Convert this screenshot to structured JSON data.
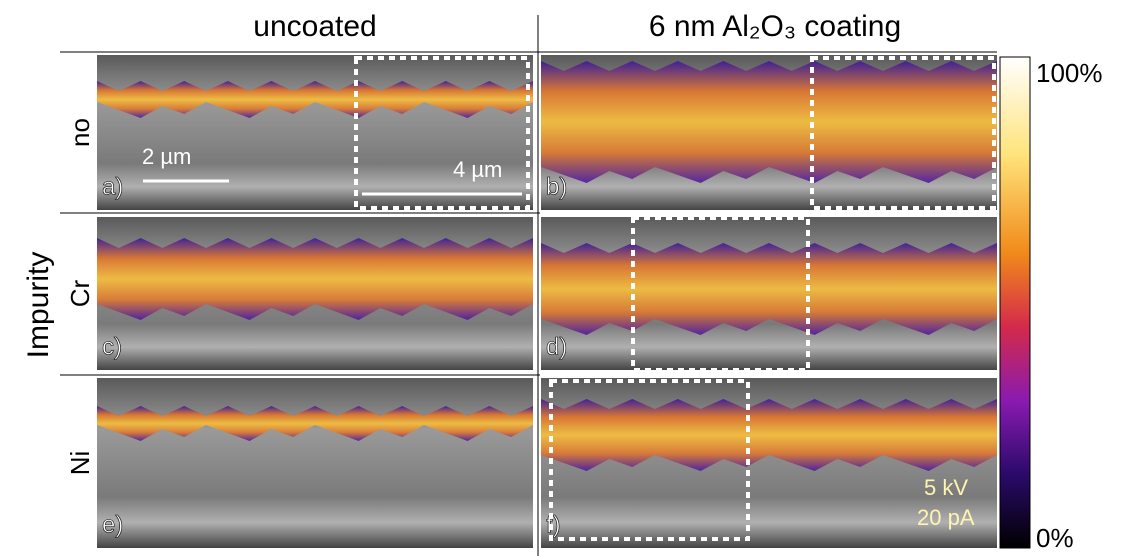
{
  "header": {
    "columns": [
      "uncoated",
      "6 nm Al₂O₃ coating"
    ]
  },
  "rows": {
    "title": "Impurity",
    "labels": [
      "no",
      "Cr",
      "Ni"
    ]
  },
  "panels": [
    {
      "label": "a)"
    },
    {
      "label": "b)"
    },
    {
      "label": "c)"
    },
    {
      "label": "d)"
    },
    {
      "label": "e)"
    },
    {
      "label": "f)"
    }
  ],
  "annotations": {
    "scale_bar": "2 µm",
    "width_marker": "4 µm",
    "voltage": "5 kV",
    "current": "20 pA"
  },
  "colorbar": {
    "max": "100%",
    "min": "0%"
  }
}
